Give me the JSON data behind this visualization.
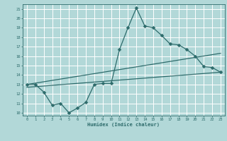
{
  "xlabel": "Humidex (Indice chaleur)",
  "bg_color": "#b2d8d8",
  "grid_color": "#ffffff",
  "line_color": "#2d6b6b",
  "xlim": [
    -0.5,
    23.5
  ],
  "ylim": [
    9.7,
    21.5
  ],
  "xticks": [
    0,
    1,
    2,
    3,
    4,
    5,
    6,
    7,
    8,
    9,
    10,
    11,
    12,
    13,
    14,
    15,
    16,
    17,
    18,
    19,
    20,
    21,
    22,
    23
  ],
  "yticks": [
    10,
    11,
    12,
    13,
    14,
    15,
    16,
    17,
    18,
    19,
    20,
    21
  ],
  "line1_x": [
    0,
    1,
    2,
    3,
    4,
    5,
    6,
    7,
    8,
    9,
    10,
    11,
    12,
    13,
    14,
    15,
    16,
    17,
    18,
    19,
    20,
    21,
    22,
    23
  ],
  "line1_y": [
    13.0,
    13.0,
    12.2,
    10.8,
    11.0,
    10.0,
    10.5,
    11.1,
    13.0,
    13.1,
    13.1,
    16.7,
    19.0,
    21.1,
    19.2,
    19.0,
    18.2,
    17.3,
    17.2,
    16.7,
    16.0,
    14.9,
    14.8,
    14.3
  ],
  "line2_x": [
    0,
    23
  ],
  "line2_y": [
    13.0,
    16.3
  ],
  "line3_x": [
    0,
    23
  ],
  "line3_y": [
    12.7,
    14.3
  ],
  "markersize": 2.5,
  "linewidth": 0.9
}
